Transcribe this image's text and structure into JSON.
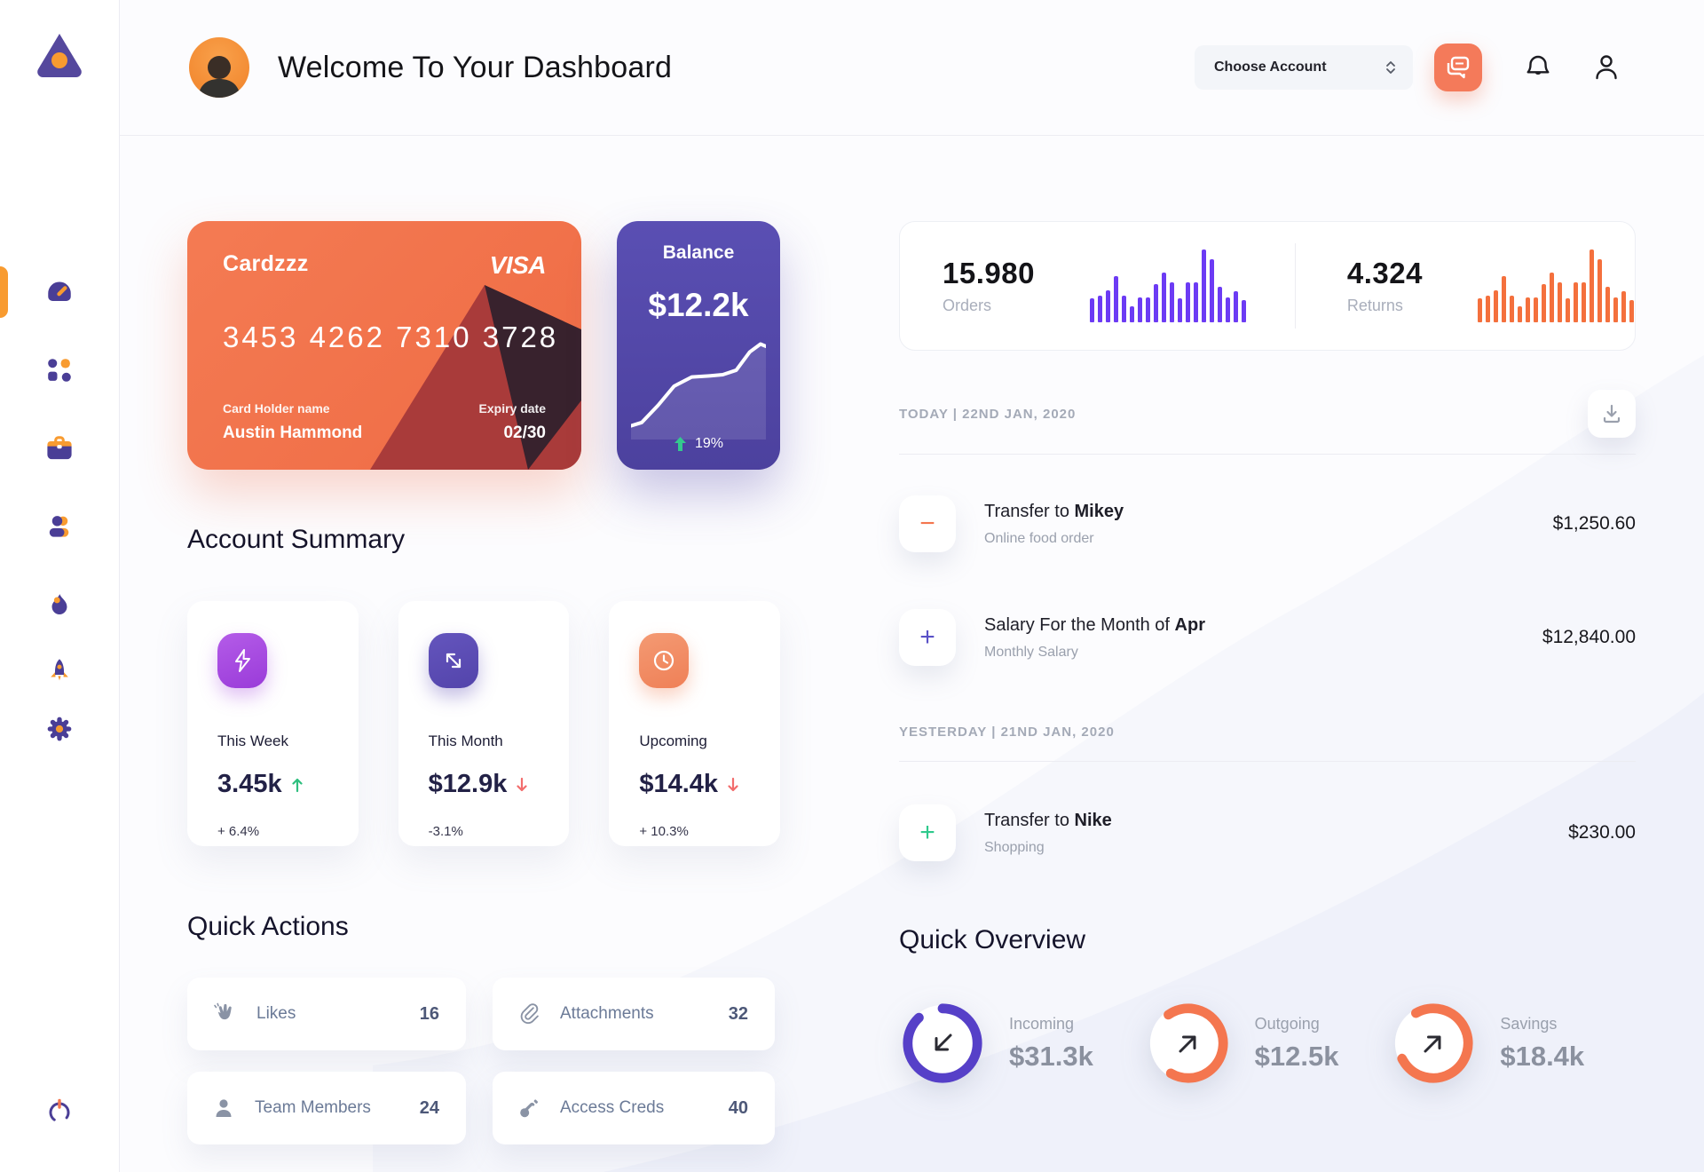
{
  "header": {
    "title": "Welcome To Your Dashboard",
    "account_select_label": "Choose Account"
  },
  "sidebar": {
    "items": [
      {
        "icon": "gauge-icon",
        "active": true
      },
      {
        "icon": "grid-icon",
        "active": false
      },
      {
        "icon": "briefcase-icon",
        "active": false
      },
      {
        "icon": "users-icon",
        "active": false
      },
      {
        "icon": "flame-icon",
        "active": false
      },
      {
        "icon": "rocket-icon",
        "active": false
      },
      {
        "icon": "gear-icon",
        "active": false
      }
    ],
    "power_icon": "power-icon"
  },
  "credit_card": {
    "name": "Cardzzz",
    "brand": "VISA",
    "number": "3453 4262 7310 3728",
    "holder_label": "Card Holder name",
    "holder_name": "Austin Hammond",
    "expiry_label": "Expiry date",
    "expiry": "02/30"
  },
  "balance_card": {
    "label": "Balance",
    "value": "$12.2k",
    "delta": "19%"
  },
  "account_summary": {
    "title": "Account Summary",
    "cards": [
      {
        "label": "This Week",
        "value": "3.45k",
        "trend": "up",
        "delta": "+ 6.4%",
        "icon": "lightning-icon",
        "tile_color": "#a84fe0"
      },
      {
        "label": "This Month",
        "value": "$12.9k",
        "trend": "down",
        "delta": "-3.1%",
        "icon": "diagonal-arrows-icon",
        "tile_color": "#5b4bb5"
      },
      {
        "label": "Upcoming",
        "value": "$14.4k",
        "trend": "down",
        "delta": "+ 10.3%",
        "icon": "clock-icon",
        "tile_color": "#f2906b"
      }
    ]
  },
  "quick_actions": {
    "title": "Quick Actions",
    "items": [
      {
        "label": "Likes",
        "count": "16",
        "icon": "hand-icon"
      },
      {
        "label": "Attachments",
        "count": "32",
        "icon": "paperclip-icon"
      },
      {
        "label": "Team Members",
        "count": "24",
        "icon": "member-icon"
      },
      {
        "label": "Access Creds",
        "count": "40",
        "icon": "key-icon"
      }
    ]
  },
  "stats": {
    "orders": {
      "value": "15.980",
      "label": "Orders"
    },
    "returns": {
      "value": "4.324",
      "label": "Returns"
    }
  },
  "transactions": {
    "today_label": "TODAY | 22ND JAN, 2020",
    "yesterday_label": "YESTERDAY | 21ND JAN, 2020",
    "rows": [
      {
        "title_prefix": "Transfer to ",
        "title_bold": "Mikey",
        "subtitle": "Online food order",
        "amount": "$1,250.60",
        "sign_char": "−",
        "sign_color": "#f4764f"
      },
      {
        "title_prefix": "Salary For the Month of ",
        "title_bold": "Apr",
        "subtitle": "Monthly Salary",
        "amount": "$12,840.00",
        "sign_char": "+",
        "sign_color": "#5a51c7"
      },
      {
        "title_prefix": "Transfer to ",
        "title_bold": "Nike",
        "subtitle": "Shopping",
        "amount": "$230.00",
        "sign_char": "+",
        "sign_color": "#2fc98c"
      }
    ]
  },
  "quick_overview": {
    "title": "Quick Overview",
    "items": [
      {
        "label": "Incoming",
        "value": "$31.3k",
        "arrow": "down-left-arrow-icon"
      },
      {
        "label": "Outgoing",
        "value": "$12.5k",
        "arrow": "up-right-arrow-icon"
      },
      {
        "label": "Savings",
        "value": "$18.4k",
        "arrow": "up-right-arrow-icon"
      }
    ]
  },
  "chart_data": [
    {
      "type": "bar",
      "name": "orders_sparkline",
      "title": "Orders activity",
      "values": [
        33,
        36,
        44,
        64,
        36,
        22,
        34,
        34,
        53,
        68,
        55,
        33,
        55,
        55,
        100,
        86,
        49,
        34,
        43,
        30
      ],
      "color": "#6c3bf4"
    },
    {
      "type": "bar",
      "name": "returns_sparkline",
      "title": "Returns activity",
      "values": [
        33,
        36,
        44,
        64,
        36,
        22,
        34,
        34,
        53,
        68,
        55,
        33,
        55,
        55,
        100,
        86,
        49,
        34,
        43,
        30
      ],
      "color": "#f4703d"
    },
    {
      "type": "line",
      "name": "balance_trend",
      "title": "Balance trend",
      "color": "#ffffff",
      "points": [
        [
          0,
          12
        ],
        [
          8,
          15
        ],
        [
          20,
          30
        ],
        [
          32,
          47
        ],
        [
          45,
          55
        ],
        [
          58,
          56
        ],
        [
          68,
          57
        ],
        [
          78,
          61
        ],
        [
          88,
          77
        ],
        [
          96,
          84
        ],
        [
          100,
          82
        ]
      ]
    },
    {
      "type": "donut",
      "name": "incoming_ring",
      "percent": 88,
      "rotate": -90,
      "color": "#5640c8"
    },
    {
      "type": "donut",
      "name": "outgoing_ring",
      "percent": 68,
      "rotate": -125,
      "color": "#f4764f"
    },
    {
      "type": "donut",
      "name": "savings_ring",
      "percent": 76,
      "rotate": -120,
      "color": "#f4764f"
    }
  ],
  "colors": {
    "accent_orange": "#f4764f",
    "accent_purple": "#5640c8",
    "sidebar_orange": "#f89b30",
    "sidebar_purple": "#4a3e96",
    "card_orange": "#f2714d",
    "balance_purple": "#544aa8"
  }
}
